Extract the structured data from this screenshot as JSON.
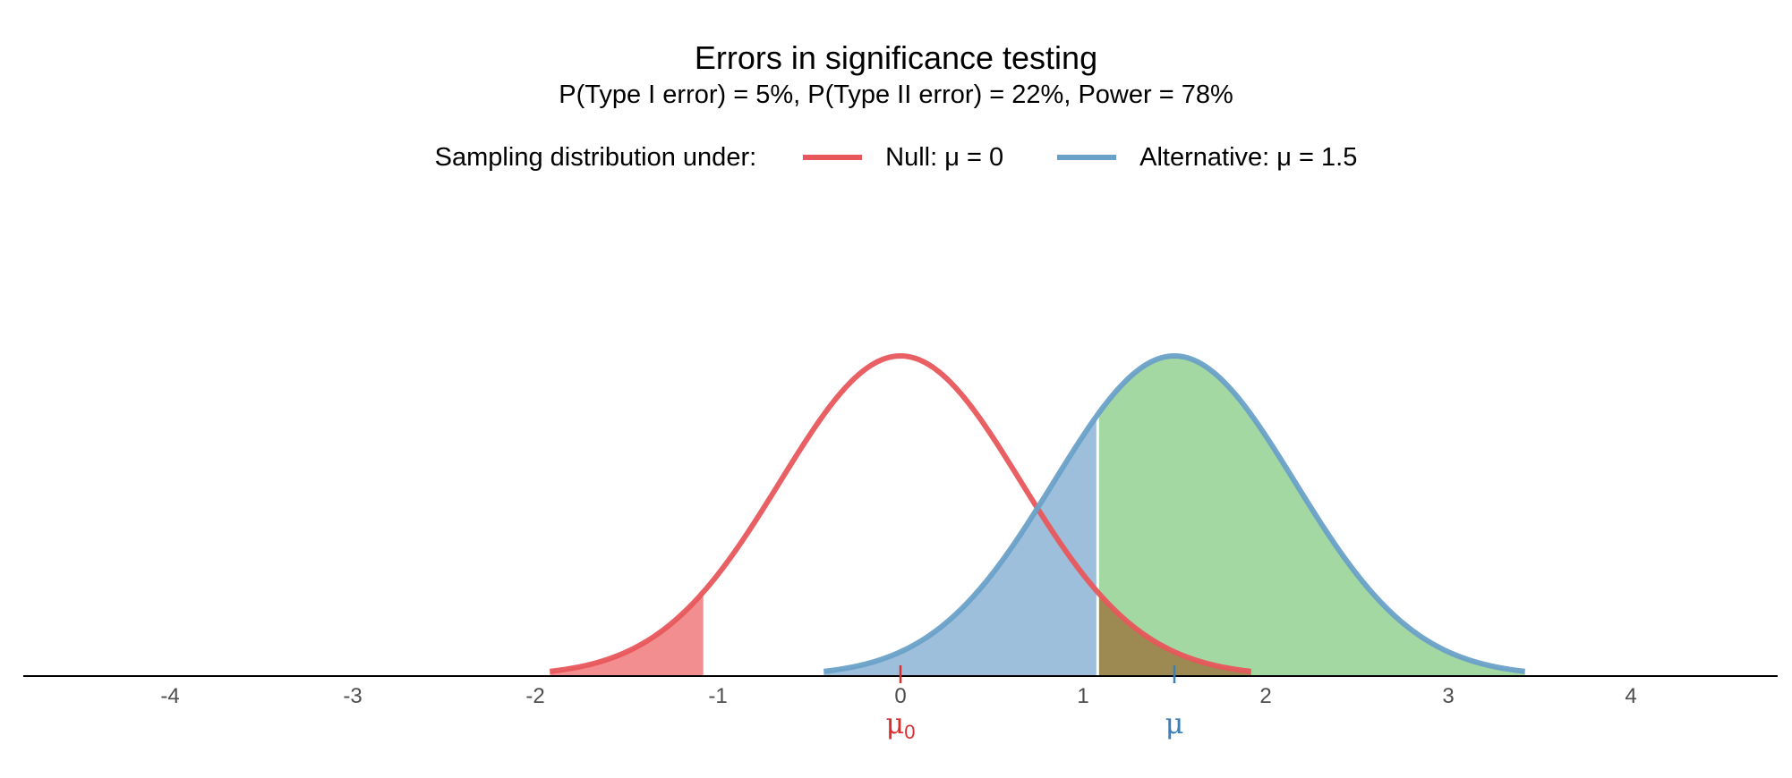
{
  "chart_data": {
    "type": "area",
    "title": "Errors in significance testing",
    "subtitle": "P(Type I error) = 5%, P(Type II error) = 22%, Power = 78%",
    "legend": {
      "title": "Sampling distribution under:",
      "placement": "top",
      "entries": [
        {
          "label": "Null: μ = 0",
          "color": "#e8575c"
        },
        {
          "label": "Alternative: μ = 1.5",
          "color": "#6aa1c8"
        }
      ]
    },
    "series": [
      {
        "name": "Null: μ = 0",
        "mean": 0,
        "sd": 0.66,
        "x_range": [
          -1.92,
          1.92
        ],
        "color": "#e8575c"
      },
      {
        "name": "Alternative: μ = 1.5",
        "mean": 1.5,
        "sd": 0.66,
        "x_range": [
          -0.42,
          3.42
        ],
        "color": "#6aa1c8"
      }
    ],
    "critical_value": 1.08,
    "shaded_regions": [
      {
        "label": "Type I error (lower tail)",
        "series": "Null: μ = 0",
        "from": -1.92,
        "to": -1.08,
        "color": "#f28e90"
      },
      {
        "label": "Type I error (upper tail)",
        "series": "Null: μ = 0",
        "from": 1.08,
        "to": 1.92,
        "color": "#9c8a52"
      },
      {
        "label": "Type II error",
        "series": "Alternative: μ = 1.5",
        "from": -0.42,
        "to": 1.08,
        "color": "#9dbfdc"
      },
      {
        "label": "Power",
        "series": "Alternative: μ = 1.5",
        "from": 1.08,
        "to": 3.42,
        "color": "#a3d8a3"
      }
    ],
    "x_ticks": [
      "-4",
      "-3",
      "-2",
      "-1",
      "0",
      "1",
      "2",
      "3",
      "4"
    ],
    "xlim": [
      -4.8,
      4.8
    ],
    "grid": false,
    "annotations": [
      {
        "label": "μ",
        "subscript": "0",
        "x": 0,
        "color": "#d9302f"
      },
      {
        "label": "μ",
        "subscript": "",
        "x": 1.5,
        "color": "#3a7fba"
      }
    ]
  }
}
